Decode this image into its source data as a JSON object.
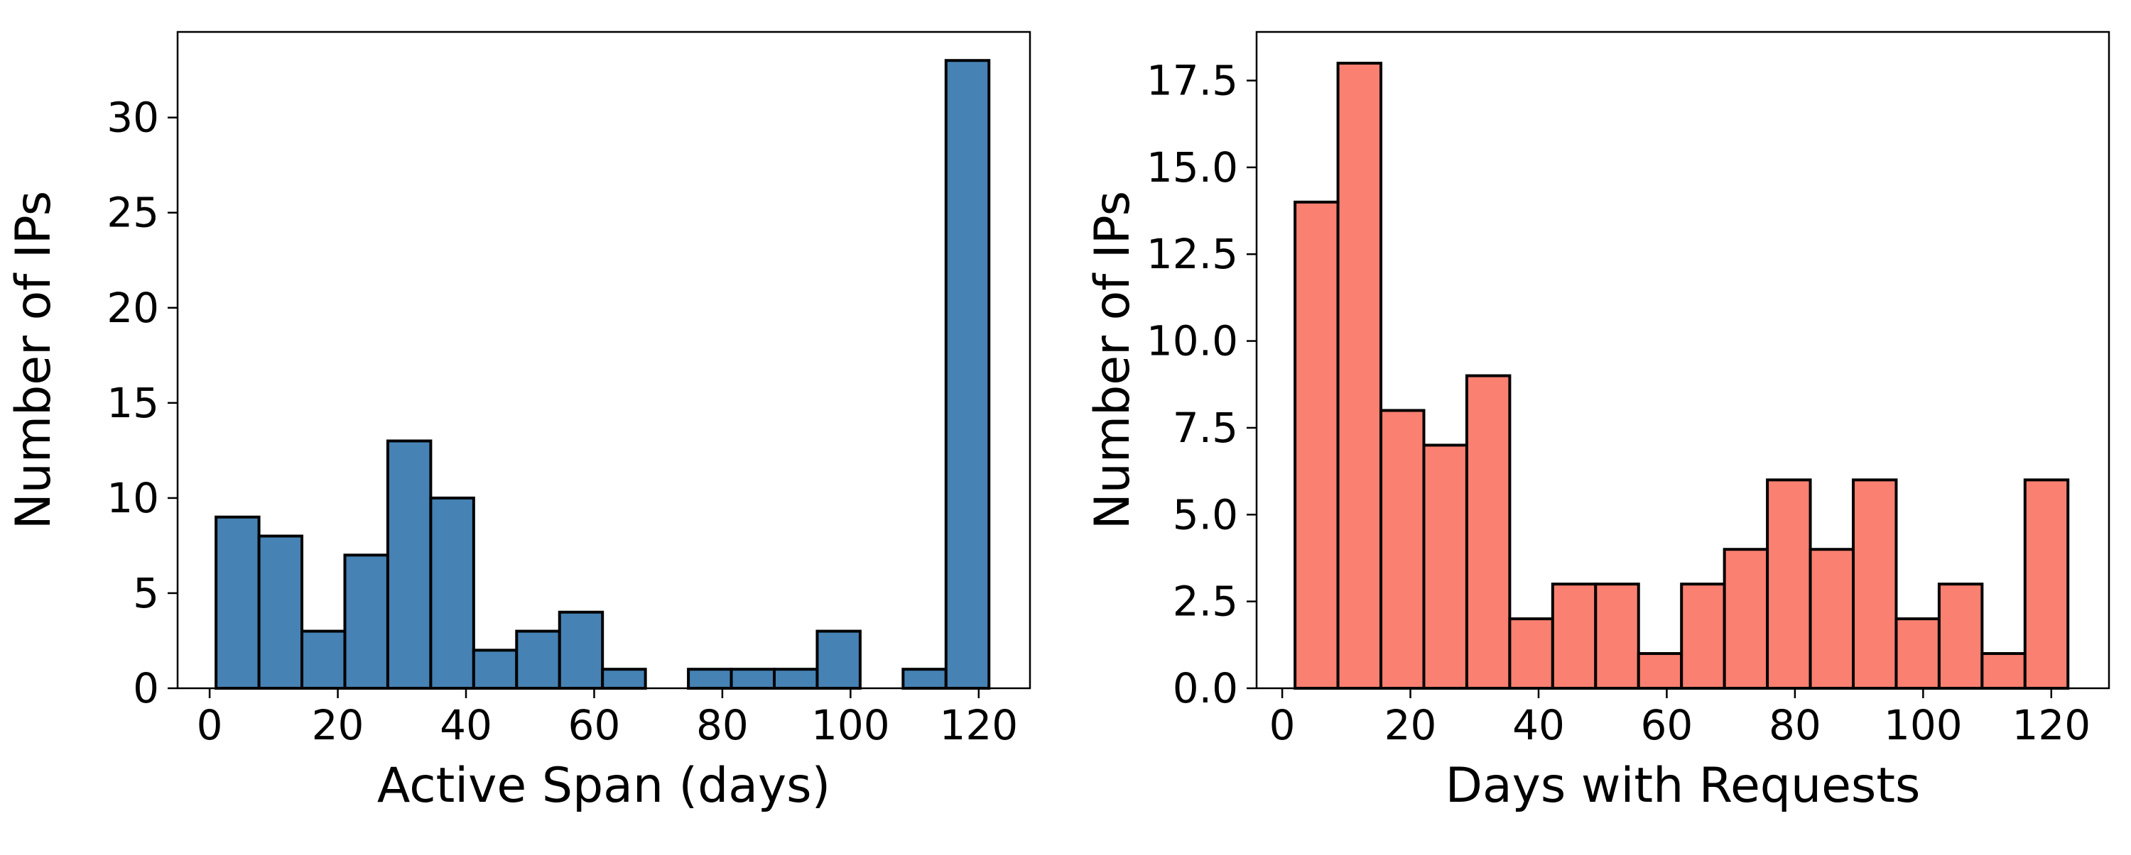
{
  "chart_data": [
    {
      "type": "histogram",
      "xlabel": "Active Span (days)",
      "ylabel": "Number of IPs",
      "color": "#4682b4",
      "edge_color": "#000000",
      "xlim": [
        -5,
        128
      ],
      "ylim": [
        0,
        34.5
      ],
      "xticks": [
        0,
        20,
        40,
        60,
        80,
        100,
        120
      ],
      "yticks": [
        0,
        5,
        10,
        15,
        20,
        25,
        30
      ],
      "bin_edges": [
        1,
        7.7,
        14.4,
        21.1,
        27.8,
        34.5,
        41.2,
        47.9,
        54.6,
        61.3,
        68,
        74.7,
        81.4,
        88.1,
        94.8,
        101.5,
        108.2,
        114.9,
        121.6
      ],
      "counts": [
        9,
        8,
        3,
        7,
        13,
        10,
        2,
        3,
        4,
        1,
        0,
        1,
        1,
        1,
        3,
        0,
        1,
        33
      ]
    },
    {
      "type": "histogram",
      "xlabel": "Days with Requests",
      "ylabel": "Number of IPs",
      "color": "#fa8072",
      "edge_color": "#000000",
      "xlim": [
        -4,
        129
      ],
      "ylim": [
        0,
        18.9
      ],
      "xticks": [
        0,
        20,
        40,
        60,
        80,
        100,
        120
      ],
      "yticks": [
        "0.0",
        "2.5",
        "5.0",
        "7.5",
        "10.0",
        "12.5",
        "15.0",
        "17.5"
      ],
      "bin_edges": [
        2,
        8.7,
        15.4,
        22.1,
        28.8,
        35.5,
        42.2,
        48.9,
        55.6,
        62.3,
        69,
        75.7,
        82.4,
        89.1,
        95.8,
        102.5,
        109.2,
        115.9,
        122.6
      ],
      "counts": [
        14,
        18,
        8,
        7,
        9,
        2,
        3,
        3,
        1,
        3,
        4,
        6,
        4,
        6,
        2,
        3,
        1,
        6
      ]
    }
  ]
}
